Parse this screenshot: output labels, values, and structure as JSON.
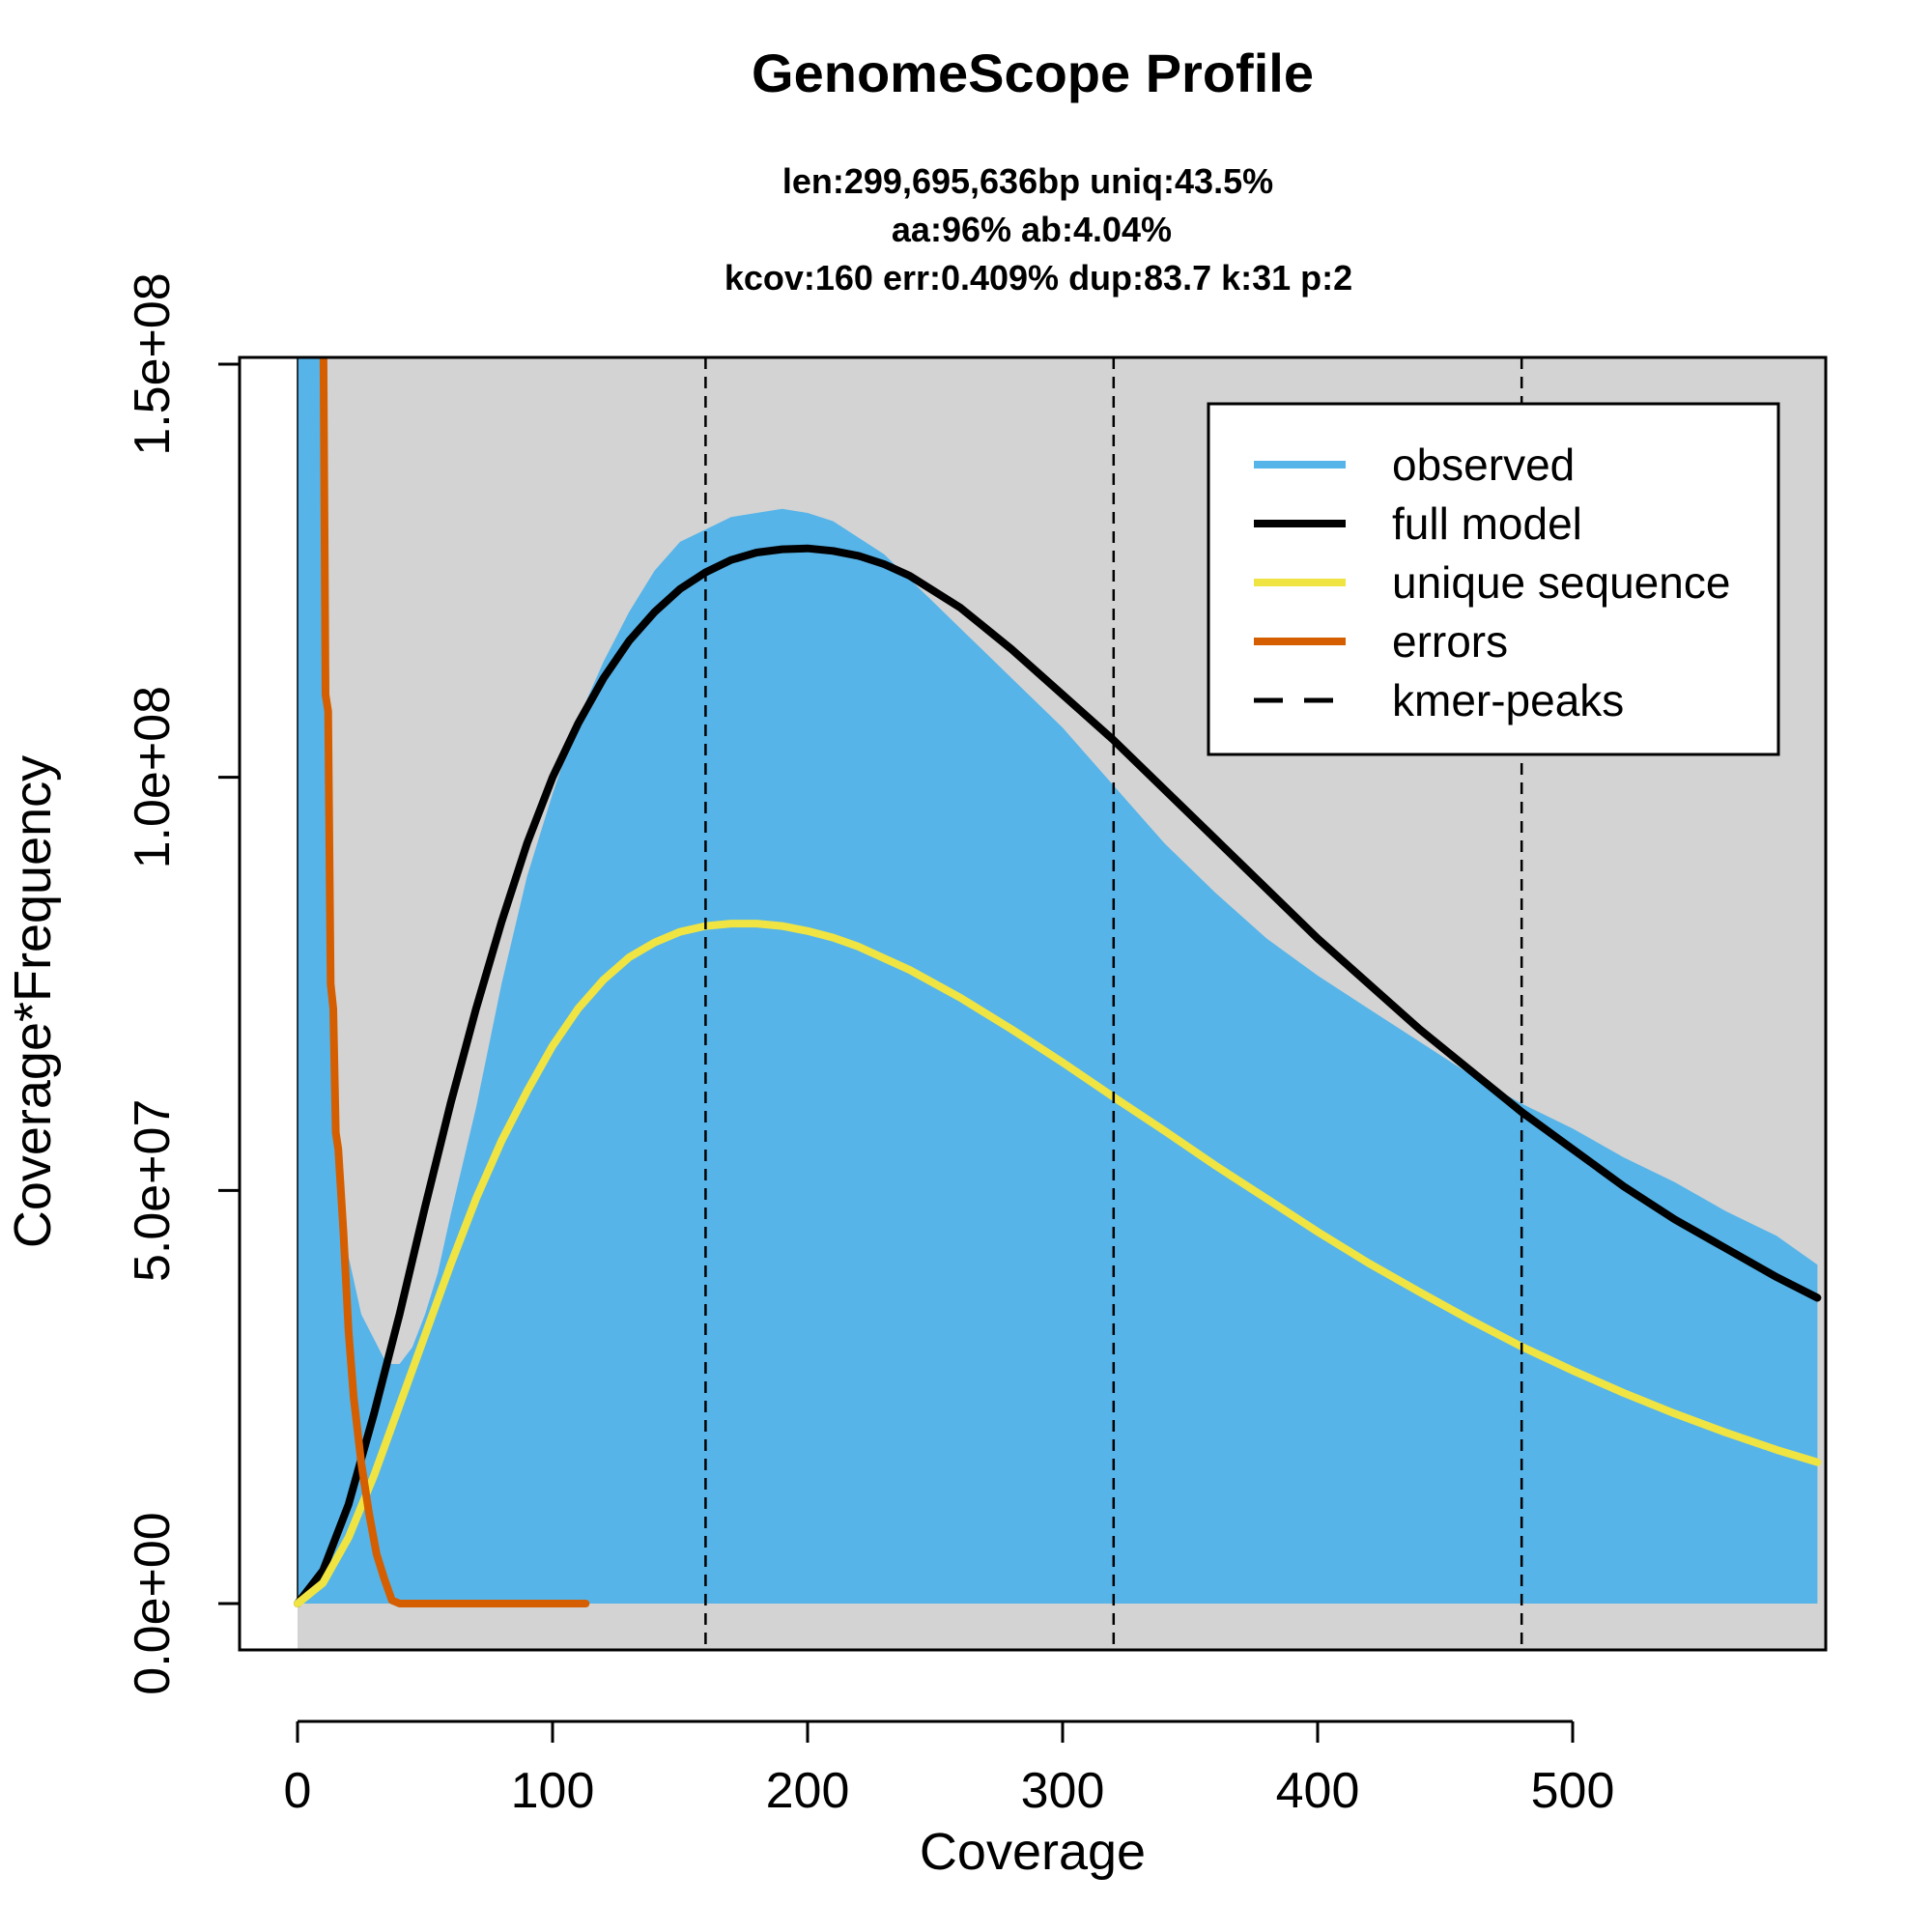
{
  "colors": {
    "observed": "#56B4E9",
    "full_model": "#000000",
    "unique_sequence": "#F0E442",
    "errors": "#D55E00",
    "kmer_peaks": "#000000",
    "plot_background": "#D3D3D3"
  },
  "chart_data": {
    "type": "area",
    "title": "GenomeScope Profile",
    "subtitle_lines": [
      "len:299,695,636bp uniq:43.5%",
      "aa:96% ab:4.04%",
      "kcov:160 err:0.409%  dup:83.7  k:31 p:2"
    ],
    "xlabel": "Coverage",
    "ylabel": "Coverage*Frequency",
    "xlim": [
      0,
      596
    ],
    "ylim": [
      0,
      150000000
    ],
    "x_ticks": [
      0,
      100,
      200,
      300,
      400,
      500
    ],
    "x_tick_labels": [
      "0",
      "100",
      "200",
      "300",
      "400",
      "500"
    ],
    "y_ticks": [
      0,
      50000000,
      100000000,
      150000000
    ],
    "y_tick_labels": [
      "0.0e+00",
      "5.0e+07",
      "1.0e+08",
      "1.5e+08"
    ],
    "legend": {
      "position": "top-right",
      "entries": [
        {
          "label": "observed",
          "key": "observed",
          "style": "solid"
        },
        {
          "label": "full model",
          "key": "full_model",
          "style": "solid"
        },
        {
          "label": "unique sequence",
          "key": "unique_sequence",
          "style": "solid"
        },
        {
          "label": "errors",
          "key": "errors",
          "style": "solid"
        },
        {
          "label": "kmer-peaks",
          "key": "kmer_peaks",
          "style": "dashed"
        }
      ]
    },
    "kmer_peaks": [
      160,
      320,
      480
    ],
    "series": [
      {
        "key": "observed",
        "style": "area",
        "x": [
          0,
          10,
          15,
          20,
          25,
          30,
          35,
          40,
          45,
          50,
          55,
          60,
          70,
          80,
          90,
          100,
          110,
          120,
          130,
          140,
          150,
          160,
          170,
          180,
          190,
          200,
          210,
          220,
          230,
          240,
          250,
          260,
          280,
          300,
          320,
          340,
          360,
          380,
          400,
          420,
          440,
          460,
          480,
          500,
          520,
          540,
          560,
          580,
          596
        ],
        "y": [
          160000000,
          160000000,
          60000000,
          42000000,
          35000000,
          32000000,
          29000000,
          29000000,
          31000000,
          35000000,
          40000000,
          47000000,
          60000000,
          75000000,
          88000000,
          98000000,
          107000000,
          114000000,
          120000000,
          125000000,
          128500000,
          130000000,
          131500000,
          132000000,
          132500000,
          132000000,
          131000000,
          129000000,
          127000000,
          124000000,
          121000000,
          118000000,
          112000000,
          106000000,
          99000000,
          92000000,
          86000000,
          80500000,
          76000000,
          72000000,
          68000000,
          64000000,
          60500000,
          57500000,
          54000000,
          51000000,
          47500000,
          44500000,
          41000000
        ]
      },
      {
        "key": "full_model",
        "style": "line",
        "x": [
          0,
          10,
          20,
          30,
          40,
          50,
          60,
          70,
          80,
          90,
          100,
          110,
          120,
          130,
          140,
          150,
          160,
          170,
          180,
          190,
          200,
          210,
          220,
          230,
          240,
          260,
          280,
          300,
          320,
          340,
          360,
          380,
          400,
          420,
          440,
          460,
          480,
          500,
          520,
          540,
          560,
          580,
          596
        ],
        "y": [
          0,
          4000000,
          12000000,
          23000000,
          35000000,
          48000000,
          60500000,
          72000000,
          82500000,
          92000000,
          100000000,
          106500000,
          112000000,
          116500000,
          120000000,
          122800000,
          124800000,
          126300000,
          127200000,
          127600000,
          127700000,
          127400000,
          126800000,
          125800000,
          124400000,
          120500000,
          115500000,
          110000000,
          104500000,
          98500000,
          92500000,
          86500000,
          80500000,
          75000000,
          69500000,
          64500000,
          59500000,
          55000000,
          50500000,
          46500000,
          43000000,
          39500000,
          37000000
        ]
      },
      {
        "key": "unique_sequence",
        "style": "line",
        "x": [
          0,
          10,
          20,
          30,
          40,
          50,
          60,
          70,
          80,
          90,
          100,
          110,
          120,
          130,
          140,
          150,
          160,
          170,
          180,
          190,
          200,
          210,
          220,
          240,
          260,
          280,
          300,
          320,
          340,
          360,
          380,
          400,
          420,
          440,
          460,
          480,
          500,
          520,
          540,
          560,
          580,
          596
        ],
        "y": [
          0,
          2500000,
          8000000,
          15500000,
          24000000,
          32500000,
          41000000,
          49000000,
          56000000,
          62000000,
          67500000,
          72000000,
          75500000,
          78200000,
          80000000,
          81300000,
          82000000,
          82300000,
          82300000,
          82000000,
          81400000,
          80600000,
          79500000,
          76700000,
          73300000,
          69500000,
          65500000,
          61300000,
          57200000,
          53000000,
          49000000,
          45000000,
          41200000,
          37700000,
          34300000,
          31100000,
          28200000,
          25500000,
          23000000,
          20700000,
          18600000,
          17100000
        ]
      },
      {
        "key": "errors",
        "style": "line",
        "x": [
          10,
          11,
          12,
          13,
          14,
          15,
          16,
          18,
          20,
          22,
          25,
          28,
          31,
          34,
          37,
          40,
          50,
          60,
          80,
          100,
          113
        ],
        "y": [
          160000000,
          110000000,
          108000000,
          75000000,
          72000000,
          57000000,
          55000000,
          45000000,
          33000000,
          25000000,
          17000000,
          11000000,
          6000000,
          3000000,
          400000,
          0,
          0,
          0,
          0,
          0,
          0
        ]
      }
    ]
  }
}
